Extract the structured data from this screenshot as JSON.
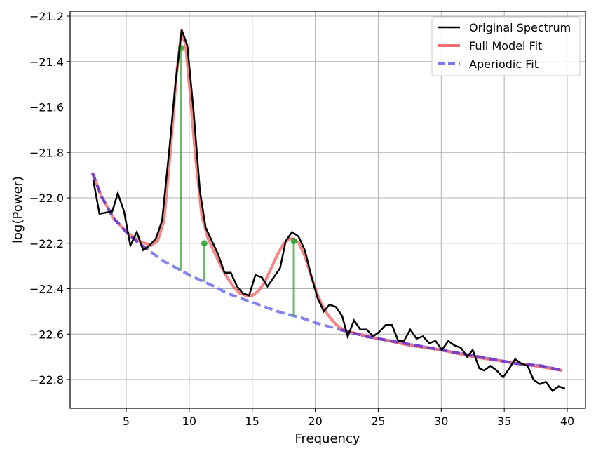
{
  "chart_data": {
    "type": "line",
    "title": "",
    "xlabel": "Frequency",
    "ylabel": "log(Power)",
    "xlim": [
      0.5,
      41.4
    ],
    "ylim": [
      -22.93,
      -21.18
    ],
    "grid": true,
    "legend_position": "upper right",
    "x_ticks": [
      5,
      10,
      15,
      20,
      25,
      30,
      35,
      40
    ],
    "x_tick_labels": [
      "5",
      "10",
      "15",
      "20",
      "25",
      "30",
      "35",
      "40"
    ],
    "y_ticks": [
      -21.2,
      -21.4,
      -21.6,
      -21.8,
      -22.0,
      -22.2,
      -22.4,
      -22.6,
      -22.8
    ],
    "y_tick_labels": [
      "−21.2",
      "−21.4",
      "−21.6",
      "−21.8",
      "−22.0",
      "−22.2",
      "−22.4",
      "−22.6",
      "−22.8"
    ],
    "series": [
      {
        "name": "Original Spectrum",
        "color": "#000000",
        "style": "solid",
        "x": [
          2.38,
          2.88,
          3.89,
          4.33,
          4.83,
          5.33,
          5.84,
          6.34,
          6.84,
          7.35,
          7.85,
          8.45,
          8.9,
          9.4,
          9.85,
          10.35,
          10.85,
          11.3,
          11.8,
          12.3,
          12.8,
          13.3,
          13.8,
          14.25,
          14.75,
          15.25,
          15.76,
          16.21,
          16.71,
          17.21,
          17.66,
          18.16,
          18.67,
          19.17,
          19.67,
          20.18,
          20.68,
          21.13,
          21.63,
          22.13,
          22.58,
          23.08,
          23.58,
          24.08,
          24.59,
          25.09,
          25.59,
          26.09,
          26.59,
          27.04,
          27.54,
          28.04,
          28.55,
          29.05,
          29.55,
          30.05,
          30.55,
          31.05,
          31.56,
          32.06,
          32.5,
          33.01,
          33.4,
          33.9,
          34.4,
          34.91,
          35.41,
          35.86,
          36.36,
          36.86,
          37.31,
          37.81,
          38.31,
          38.82,
          39.32,
          39.82
        ],
        "y": [
          -21.92,
          -22.07,
          -22.06,
          -21.98,
          -22.06,
          -22.21,
          -22.15,
          -22.23,
          -22.21,
          -22.18,
          -22.1,
          -21.77,
          -21.5,
          -21.26,
          -21.33,
          -21.62,
          -21.97,
          -22.13,
          -22.19,
          -22.25,
          -22.33,
          -22.33,
          -22.39,
          -22.42,
          -22.43,
          -22.34,
          -22.35,
          -22.39,
          -22.35,
          -22.31,
          -22.19,
          -22.15,
          -22.17,
          -22.23,
          -22.34,
          -22.44,
          -22.5,
          -22.47,
          -22.48,
          -22.52,
          -22.61,
          -22.54,
          -22.58,
          -22.58,
          -22.61,
          -22.59,
          -22.56,
          -22.56,
          -22.63,
          -22.63,
          -22.58,
          -22.62,
          -22.61,
          -22.64,
          -22.63,
          -22.67,
          -22.63,
          -22.65,
          -22.66,
          -22.7,
          -22.67,
          -22.75,
          -22.76,
          -22.74,
          -22.76,
          -22.79,
          -22.75,
          -22.71,
          -22.73,
          -22.74,
          -22.8,
          -22.82,
          -22.81,
          -22.85,
          -22.83,
          -22.84
        ]
      },
      {
        "name": "Full Model Fit",
        "color": "#f07070",
        "style": "solid",
        "x": [
          2.33,
          3.0,
          4.0,
          5.0,
          6.0,
          7.0,
          7.5,
          8.0,
          8.5,
          9.0,
          9.35,
          9.7,
          10.0,
          10.5,
          11.0,
          11.5,
          12.0,
          12.5,
          13.0,
          13.5,
          14.0,
          14.5,
          15.0,
          15.5,
          16.0,
          16.5,
          17.0,
          17.5,
          18.0,
          18.3,
          18.7,
          19.2,
          19.7,
          20.2,
          20.7,
          21.2,
          21.7,
          22.2,
          22.7,
          23.5,
          25,
          27.5,
          30,
          32.5,
          35,
          37.5,
          39.6
        ],
        "y": [
          -21.89,
          -21.99,
          -22.09,
          -22.15,
          -22.19,
          -22.21,
          -22.19,
          -22.1,
          -21.8,
          -21.45,
          -21.28,
          -21.32,
          -21.5,
          -21.82,
          -22.08,
          -22.18,
          -22.24,
          -22.3,
          -22.35,
          -22.39,
          -22.42,
          -22.43,
          -22.43,
          -22.41,
          -22.37,
          -22.31,
          -22.25,
          -22.2,
          -22.18,
          -22.18,
          -22.2,
          -22.26,
          -22.35,
          -22.43,
          -22.49,
          -22.53,
          -22.56,
          -22.58,
          -22.59,
          -22.6,
          -22.62,
          -22.65,
          -22.67,
          -22.7,
          -22.72,
          -22.74,
          -22.76
        ]
      },
      {
        "name": "Aperiodic Fit",
        "color": "#7b7bf0",
        "style": "dashed",
        "x": [
          2.33,
          3.0,
          4.0,
          5.0,
          6.0,
          7.0,
          8.0,
          9.35,
          10.0,
          11.2,
          12.0,
          13.0,
          14.0,
          15.0,
          16.0,
          17.0,
          18.3,
          19.0,
          20.0,
          22.0,
          24.0,
          26.0,
          28.0,
          30.0,
          32.0,
          34.0,
          36.0,
          38.0,
          39.6
        ],
        "y": [
          -21.89,
          -21.99,
          -22.09,
          -22.15,
          -22.2,
          -22.24,
          -22.28,
          -22.32,
          -22.34,
          -22.37,
          -22.39,
          -22.42,
          -22.44,
          -22.46,
          -22.48,
          -22.5,
          -22.52,
          -22.53,
          -22.55,
          -22.58,
          -22.61,
          -22.63,
          -22.65,
          -22.67,
          -22.69,
          -22.71,
          -22.73,
          -22.74,
          -22.76
        ]
      }
    ],
    "peaks": [
      {
        "freq": 9.35,
        "peak_power": -21.34,
        "aperiodic_power": -22.32
      },
      {
        "freq": 11.2,
        "peak_power": -22.2,
        "aperiodic_power": -22.37
      },
      {
        "freq": 18.3,
        "peak_power": -22.19,
        "aperiodic_power": -22.52
      }
    ],
    "peak_color": "#2ca02c",
    "legend": [
      {
        "label": "Original Spectrum",
        "color": "#000000",
        "style": "solid"
      },
      {
        "label": "Full Model Fit",
        "color": "#f07070",
        "style": "solid"
      },
      {
        "label": "Aperiodic Fit",
        "color": "#7b7bf0",
        "style": "dashed"
      }
    ]
  }
}
